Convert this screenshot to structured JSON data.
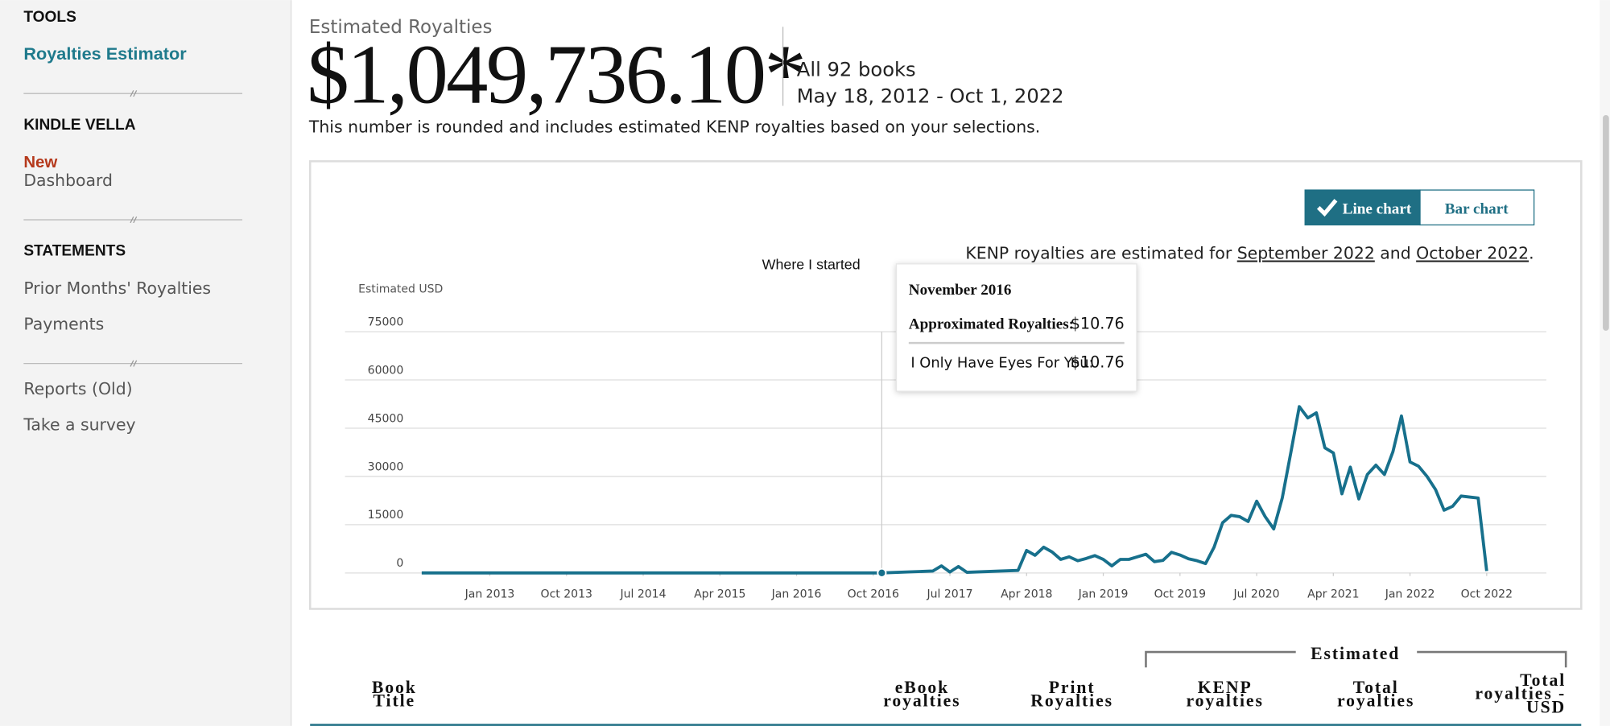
{
  "sidebar": {
    "sections": [
      {
        "heading": "TOOLS",
        "items": [
          "Royalties Estimator"
        ]
      },
      {
        "heading": "KINDLE VELLA",
        "badge": "New",
        "items": [
          "Dashboard"
        ]
      },
      {
        "heading": "STATEMENTS",
        "items": [
          "Prior Months' Royalties",
          "Payments"
        ]
      },
      {
        "items": [
          "Reports (Old)",
          "Take a survey"
        ]
      }
    ]
  },
  "summary": {
    "label": "Estimated Royalties",
    "amount": "$1,049,736.10*",
    "books": "All 92 books",
    "range": "May 18, 2012 - Oct 1, 2022",
    "note": "This number is rounded and includes estimated KENP royalties based on your selections."
  },
  "toggle": [
    "Line chart",
    "Bar chart"
  ],
  "kenp_note": [
    "KENP royalties are estimated for ",
    "September 2022",
    " and ",
    "October 2022",
    "."
  ],
  "chart": {
    "type": "line",
    "annotation": "Where I started",
    "y_label": "Estimated USD",
    "xlim": [
      "2011-08",
      "2023-05"
    ],
    "ylim": [
      0,
      75000
    ],
    "yticks": [
      0,
      15000,
      30000,
      45000,
      60000,
      75000
    ],
    "xticks": [
      {
        "value": "2013-01",
        "label": "Jan 2013"
      },
      {
        "value": "2013-10",
        "label": "Oct 2013"
      },
      {
        "value": "2014-07",
        "label": "Jul 2014"
      },
      {
        "value": "2015-04",
        "label": "Apr 2015"
      },
      {
        "value": "2016-01",
        "label": "Jan 2016"
      },
      {
        "value": "2016-10",
        "label": "Oct 2016"
      },
      {
        "value": "2017-07",
        "label": "Jul 2017"
      },
      {
        "value": "2018-04",
        "label": "Apr 2018"
      },
      {
        "value": "2019-01",
        "label": "Jan 2019"
      },
      {
        "value": "2019-10",
        "label": "Oct 2019"
      },
      {
        "value": "2020-07",
        "label": "Jul 2020"
      },
      {
        "value": "2021-04",
        "label": "Apr 2021"
      },
      {
        "value": "2022-01",
        "label": "Jan 2022"
      },
      {
        "value": "2022-10",
        "label": "Oct 2022"
      }
    ],
    "grid": true,
    "series": [
      {
        "color": "#17708c",
        "x": [
          "2012-05",
          "2016-11",
          "2017-05",
          "2017-06",
          "2017-07",
          "2017-08",
          "2017-09",
          "2018-01",
          "2018-03",
          "2018-04",
          "2018-05",
          "2018-06",
          "2018-07",
          "2018-08",
          "2018-09",
          "2018-10",
          "2018-11",
          "2018-12",
          "2019-01",
          "2019-02",
          "2019-03",
          "2019-04",
          "2019-05",
          "2019-06",
          "2019-07",
          "2019-08",
          "2019-09",
          "2019-10",
          "2019-11",
          "2019-12",
          "2020-01",
          "2020-02",
          "2020-03",
          "2020-04",
          "2020-05",
          "2020-06",
          "2020-07",
          "2020-08",
          "2020-09",
          "2020-10",
          "2020-11",
          "2020-12",
          "2021-01",
          "2021-02",
          "2021-03",
          "2021-04",
          "2021-05",
          "2021-06",
          "2021-07",
          "2021-08",
          "2021-09",
          "2021-10",
          "2021-11",
          "2021-12",
          "2022-01",
          "2022-02",
          "2022-03",
          "2022-04",
          "2022-05",
          "2022-06",
          "2022-07",
          "2022-08",
          "2022-09",
          "2022-10"
        ],
        "values": [
          5,
          10.76,
          600,
          2200,
          300,
          2000,
          200,
          600,
          800,
          7000,
          5500,
          8000,
          6500,
          4200,
          5000,
          3800,
          4500,
          5400,
          4200,
          2200,
          4200,
          4200,
          5000,
          5800,
          3500,
          3900,
          6400,
          5600,
          4400,
          3800,
          2900,
          8000,
          15600,
          17900,
          17500,
          16000,
          22300,
          17500,
          13700,
          23300,
          37300,
          51700,
          48200,
          49800,
          38900,
          37300,
          24600,
          32900,
          23000,
          30600,
          33500,
          30600,
          37700,
          48800,
          34500,
          33200,
          30000,
          25900,
          19500,
          20700,
          23900,
          23600,
          23300,
          600
        ]
      }
    ],
    "hover": {
      "x": "2016-11",
      "value": 10.76
    },
    "tooltip": {
      "title": "November 2016",
      "rows": [
        {
          "label": "Approximated Royalties:",
          "value": "$10.76"
        },
        {
          "label": "I Only Have Eyes For You:",
          "value": "$10.76"
        }
      ]
    }
  },
  "table": {
    "group": "Estimated",
    "columns": [
      [
        "Book",
        "Title"
      ],
      [
        "eBook",
        "royalties"
      ],
      [
        "Print",
        "Royalties"
      ],
      [
        "KENP",
        "royalties"
      ],
      [
        "Total",
        "royalties"
      ],
      [
        "Total",
        "royalties -",
        "USD"
      ]
    ]
  }
}
